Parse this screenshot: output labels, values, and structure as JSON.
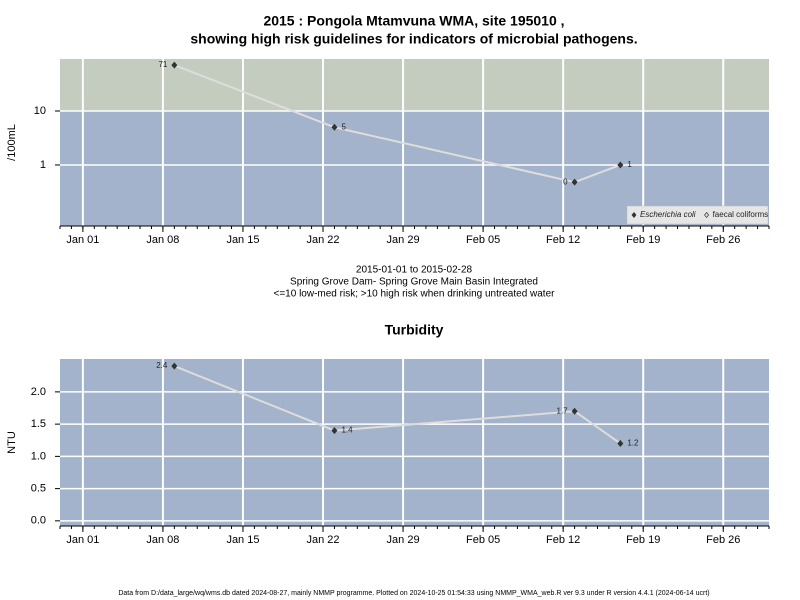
{
  "chart_data": [
    {
      "type": "line",
      "title": [
        "2015 : Pongola Mtamvuna WMA, site 195010 ,",
        "showing high risk guidelines for indicators of microbial pathogens."
      ],
      "notes": [
        "2015-01-01 to 2015-02-28",
        "Spring Grove Dam- Spring Grove Main Basin Integrated",
        "<=10 low-med risk; >10 high risk when drinking untreated water"
      ],
      "ylabel": "/100mL",
      "x": [
        "2015-01-09",
        "2015-01-23",
        "2015-02-13",
        "2015-02-17"
      ],
      "series": [
        {
          "name": "Escherichia coli",
          "color": "#333333",
          "values": [
            71,
            5,
            0.48,
            1
          ],
          "value_labels": [
            "71",
            "5",
            "0",
            "1"
          ]
        },
        {
          "name": "faecal coliforms",
          "color": "#333333",
          "values": [
            null,
            null,
            null,
            null
          ]
        }
      ],
      "line_color": "#dddddd",
      "ylog": true,
      "ylim": [
        0.074,
        92
      ],
      "yticks": [
        1,
        10
      ],
      "xlim": [
        "2014-12-30",
        "2015-03-02"
      ],
      "xticks": [
        {
          "value": "2015-01-01",
          "label": "Jan 01"
        },
        {
          "value": "2015-01-08",
          "label": "Jan 08"
        },
        {
          "value": "2015-01-15",
          "label": "Jan 15"
        },
        {
          "value": "2015-01-22",
          "label": "Jan 22"
        },
        {
          "value": "2015-01-29",
          "label": "Jan 29"
        },
        {
          "value": "2015-02-05",
          "label": "Feb 05"
        },
        {
          "value": "2015-02-12",
          "label": "Feb 12"
        },
        {
          "value": "2015-02-19",
          "label": "Feb 19"
        },
        {
          "value": "2015-02-26",
          "label": "Feb 26"
        }
      ],
      "grid": true,
      "threshold": 10,
      "above_color": "#c4ccc0",
      "below_color": "#a3b3cb",
      "legend": "bottom-right"
    },
    {
      "type": "line",
      "title": [
        "Turbidity"
      ],
      "ylabel": "NTU",
      "x": [
        "2015-01-09",
        "2015-01-23",
        "2015-02-13",
        "2015-02-17"
      ],
      "series": [
        {
          "name": "Turbidity",
          "color": "#333333",
          "values": [
            2.4,
            1.4,
            1.7,
            1.2
          ]
        }
      ],
      "line_color": "#dddddd",
      "ylog": false,
      "ylim": [
        -0.08,
        2.51
      ],
      "yticks": [
        {
          "value": 0,
          "label": "0.0"
        },
        {
          "value": 0.5,
          "label": "0.5"
        },
        {
          "value": 1,
          "label": "1.0"
        },
        {
          "value": 1.5,
          "label": "1.5"
        },
        {
          "value": 2,
          "label": "2.0"
        }
      ],
      "xlim": [
        "2014-12-30",
        "2015-03-02"
      ],
      "xticks": [
        {
          "value": "2015-01-01",
          "label": "Jan 01"
        },
        {
          "value": "2015-01-08",
          "label": "Jan 08"
        },
        {
          "value": "2015-01-15",
          "label": "Jan 15"
        },
        {
          "value": "2015-01-22",
          "label": "Jan 22"
        },
        {
          "value": "2015-01-29",
          "label": "Jan 29"
        },
        {
          "value": "2015-02-05",
          "label": "Feb 05"
        },
        {
          "value": "2015-02-12",
          "label": "Feb 12"
        },
        {
          "value": "2015-02-19",
          "label": "Feb 19"
        },
        {
          "value": "2015-02-26",
          "label": "Feb 26"
        }
      ],
      "grid": true,
      "below_color": "#a3b3cb"
    }
  ],
  "footer": "Data from D:/data_large/wq/wms.db dated 2024-08-27, mainly NMMP programme. Plotted on 2024-10-25 01:54:33 using NMMP_WMA_web.R ver 9.3 under R version 4.4.1 (2024-06-14 ucrt)"
}
